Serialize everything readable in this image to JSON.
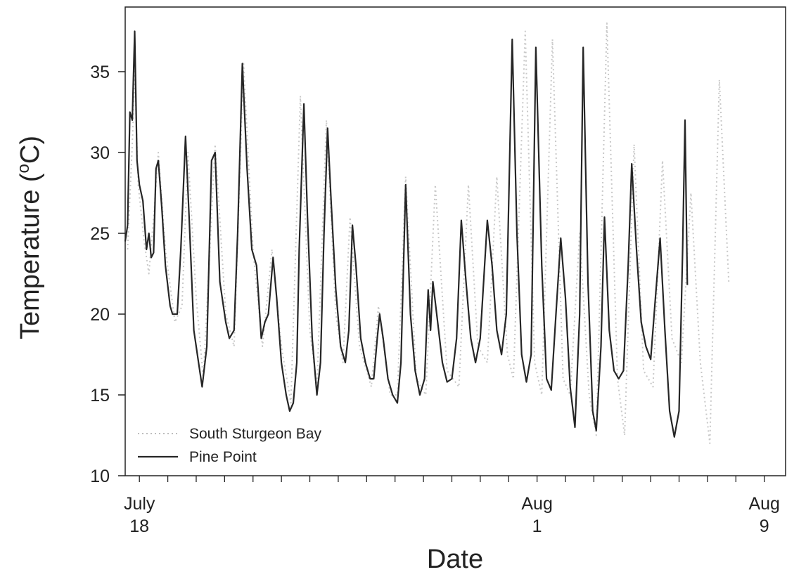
{
  "chart_data": {
    "type": "line",
    "xlabel": "Date",
    "ylabel": "Temperature (",
    "ylabel_sup": "o",
    "ylabel_end": "C)",
    "ylim": [
      10,
      39
    ],
    "y_ticks": [
      10,
      15,
      20,
      25,
      30,
      35
    ],
    "xlim": [
      "2009-07-17T12:00",
      "2009-08-09T18:00"
    ],
    "x_tick_labels": [
      {
        "date": "2009-07-18",
        "line1": "July",
        "line2": "18"
      },
      {
        "date": "2009-08-01",
        "line1": "Aug",
        "line2": "1"
      },
      {
        "date": "2009-08-09",
        "line1": "Aug",
        "line2": "9"
      }
    ],
    "minor_tick_interval_days": 1,
    "legend_position": "bottom-left",
    "series": [
      {
        "name": "South Sturgeon Bay",
        "style": "dotted",
        "color": "#c8c8c8",
        "points": [
          [
            "2009-07-17T14:00",
            24.0
          ],
          [
            "2009-07-17T18:00",
            30.5
          ],
          [
            "2009-07-17T20:00",
            35.0
          ],
          [
            "2009-07-17T23:00",
            28.0
          ],
          [
            "2009-07-18T04:00",
            24.5
          ],
          [
            "2009-07-18T08:00",
            22.5
          ],
          [
            "2009-07-18T12:00",
            26.0
          ],
          [
            "2009-07-18T16:00",
            30.0
          ],
          [
            "2009-07-18T22:00",
            24.0
          ],
          [
            "2009-07-19T06:00",
            19.5
          ],
          [
            "2009-07-19T12:00",
            20.5
          ],
          [
            "2009-07-19T17:00",
            30.0
          ],
          [
            "2009-07-20T00:00",
            21.0
          ],
          [
            "2009-07-20T06:00",
            16.0
          ],
          [
            "2009-07-20T16:00",
            30.5
          ],
          [
            "2009-07-21T01:00",
            20.0
          ],
          [
            "2009-07-21T08:00",
            18.0
          ],
          [
            "2009-07-21T16:00",
            35.5
          ],
          [
            "2009-07-22T00:00",
            24.0
          ],
          [
            "2009-07-22T08:00",
            18.0
          ],
          [
            "2009-07-22T16:00",
            24.0
          ],
          [
            "2009-07-23T00:00",
            18.0
          ],
          [
            "2009-07-23T08:00",
            14.5
          ],
          [
            "2009-07-23T16:00",
            33.5
          ],
          [
            "2009-07-24T00:00",
            19.0
          ],
          [
            "2009-07-24T06:00",
            15.5
          ],
          [
            "2009-07-24T14:00",
            32.0
          ],
          [
            "2009-07-24T22:00",
            20.0
          ],
          [
            "2009-07-25T04:00",
            17.0
          ],
          [
            "2009-07-25T10:00",
            26.0
          ],
          [
            "2009-07-25T18:00",
            18.0
          ],
          [
            "2009-07-26T04:00",
            15.5
          ],
          [
            "2009-07-26T10:00",
            20.5
          ],
          [
            "2009-07-26T20:00",
            15.0
          ],
          [
            "2009-07-27T02:00",
            15.0
          ],
          [
            "2009-07-27T09:00",
            28.5
          ],
          [
            "2009-07-27T18:00",
            16.0
          ],
          [
            "2009-07-28T02:00",
            15.0
          ],
          [
            "2009-07-28T10:00",
            28.0
          ],
          [
            "2009-07-28T20:00",
            16.5
          ],
          [
            "2009-07-29T06:00",
            15.5
          ],
          [
            "2009-07-29T14:00",
            28.0
          ],
          [
            "2009-07-29T22:00",
            18.0
          ],
          [
            "2009-07-30T06:00",
            17.0
          ],
          [
            "2009-07-30T14:00",
            28.5
          ],
          [
            "2009-07-30T23:00",
            17.5
          ],
          [
            "2009-07-31T04:00",
            16.0
          ],
          [
            "2009-07-31T14:00",
            37.5
          ],
          [
            "2009-07-31T22:00",
            17.0
          ],
          [
            "2009-08-01T04:00",
            15.0
          ],
          [
            "2009-08-01T13:00",
            37.0
          ],
          [
            "2009-08-01T22:00",
            16.0
          ],
          [
            "2009-08-02T04:00",
            15.0
          ],
          [
            "2009-08-02T12:00",
            25.0
          ],
          [
            "2009-08-02T20:00",
            15.0
          ],
          [
            "2009-08-03T02:00",
            12.5
          ],
          [
            "2009-08-03T11:00",
            38.0
          ],
          [
            "2009-08-03T20:00",
            16.0
          ],
          [
            "2009-08-04T02:00",
            12.5
          ],
          [
            "2009-08-04T10:00",
            30.5
          ],
          [
            "2009-08-04T18:00",
            16.5
          ],
          [
            "2009-08-05T02:00",
            15.5
          ],
          [
            "2009-08-05T10:00",
            29.5
          ],
          [
            "2009-08-05T18:00",
            18.5
          ],
          [
            "2009-08-06T02:00",
            17.0
          ],
          [
            "2009-08-06T10:00",
            27.5
          ],
          [
            "2009-08-06T18:00",
            17.0
          ],
          [
            "2009-08-07T02:00",
            12.0
          ],
          [
            "2009-08-07T10:00",
            34.5
          ],
          [
            "2009-08-07T18:00",
            22.0
          ]
        ]
      },
      {
        "name": "Pine Point",
        "style": "solid",
        "color": "#262626",
        "points": [
          [
            "2009-07-17T12:00",
            24.5
          ],
          [
            "2009-07-17T14:00",
            25.5
          ],
          [
            "2009-07-17T16:00",
            32.5
          ],
          [
            "2009-07-17T18:00",
            32.0
          ],
          [
            "2009-07-17T20:00",
            37.5
          ],
          [
            "2009-07-17T22:00",
            29.5
          ],
          [
            "2009-07-18T00:00",
            28.0
          ],
          [
            "2009-07-18T03:00",
            27.0
          ],
          [
            "2009-07-18T06:00",
            24.0
          ],
          [
            "2009-07-18T08:00",
            25.0
          ],
          [
            "2009-07-18T10:00",
            23.5
          ],
          [
            "2009-07-18T12:00",
            23.8
          ],
          [
            "2009-07-18T14:00",
            29.0
          ],
          [
            "2009-07-18T16:00",
            29.5
          ],
          [
            "2009-07-18T19:00",
            26.5
          ],
          [
            "2009-07-18T22:00",
            23.0
          ],
          [
            "2009-07-19T02:00",
            20.5
          ],
          [
            "2009-07-19T04:00",
            20.0
          ],
          [
            "2009-07-19T08:00",
            20.0
          ],
          [
            "2009-07-19T11:00",
            24.0
          ],
          [
            "2009-07-19T15:00",
            31.0
          ],
          [
            "2009-07-19T18:00",
            26.0
          ],
          [
            "2009-07-19T22:00",
            19.0
          ],
          [
            "2009-07-20T02:00",
            17.0
          ],
          [
            "2009-07-20T05:00",
            15.5
          ],
          [
            "2009-07-20T09:00",
            18.0
          ],
          [
            "2009-07-20T13:00",
            29.5
          ],
          [
            "2009-07-20T16:00",
            30.0
          ],
          [
            "2009-07-20T20:00",
            22.0
          ],
          [
            "2009-07-21T01:00",
            19.5
          ],
          [
            "2009-07-21T04:00",
            18.5
          ],
          [
            "2009-07-21T08:00",
            19.0
          ],
          [
            "2009-07-21T11:00",
            25.0
          ],
          [
            "2009-07-21T15:00",
            35.5
          ],
          [
            "2009-07-21T19:00",
            29.0
          ],
          [
            "2009-07-21T23:00",
            24.0
          ],
          [
            "2009-07-22T03:00",
            23.0
          ],
          [
            "2009-07-22T07:00",
            18.5
          ],
          [
            "2009-07-22T10:00",
            19.5
          ],
          [
            "2009-07-22T13:00",
            20.0
          ],
          [
            "2009-07-22T17:00",
            23.5
          ],
          [
            "2009-07-22T20:00",
            21.0
          ],
          [
            "2009-07-23T00:00",
            17.0
          ],
          [
            "2009-07-23T04:00",
            15.0
          ],
          [
            "2009-07-23T07:00",
            14.0
          ],
          [
            "2009-07-23T10:00",
            14.5
          ],
          [
            "2009-07-23T13:00",
            17.0
          ],
          [
            "2009-07-23T15:00",
            24.0
          ],
          [
            "2009-07-23T19:00",
            33.0
          ],
          [
            "2009-07-23T22:00",
            26.0
          ],
          [
            "2009-07-24T02:00",
            18.5
          ],
          [
            "2009-07-24T06:00",
            15.0
          ],
          [
            "2009-07-24T09:00",
            17.0
          ],
          [
            "2009-07-24T12:00",
            25.0
          ],
          [
            "2009-07-24T15:00",
            31.5
          ],
          [
            "2009-07-24T18:00",
            27.0
          ],
          [
            "2009-07-24T22:00",
            21.5
          ],
          [
            "2009-07-25T02:00",
            18.0
          ],
          [
            "2009-07-25T06:00",
            17.0
          ],
          [
            "2009-07-25T09:00",
            19.0
          ],
          [
            "2009-07-25T12:00",
            25.5
          ],
          [
            "2009-07-25T15:00",
            23.0
          ],
          [
            "2009-07-25T19:00",
            18.5
          ],
          [
            "2009-07-25T23:00",
            17.0
          ],
          [
            "2009-07-26T03:00",
            16.0
          ],
          [
            "2009-07-26T06:00",
            16.0
          ],
          [
            "2009-07-26T09:00",
            18.5
          ],
          [
            "2009-07-26T11:00",
            20.0
          ],
          [
            "2009-07-26T14:00",
            18.5
          ],
          [
            "2009-07-26T18:00",
            16.0
          ],
          [
            "2009-07-26T22:00",
            15.0
          ],
          [
            "2009-07-27T02:00",
            14.5
          ],
          [
            "2009-07-27T05:00",
            17.0
          ],
          [
            "2009-07-27T09:00",
            28.0
          ],
          [
            "2009-07-27T13:00",
            20.0
          ],
          [
            "2009-07-27T17:00",
            16.5
          ],
          [
            "2009-07-27T21:00",
            15.0
          ],
          [
            "2009-07-28T01:00",
            16.0
          ],
          [
            "2009-07-28T04:00",
            21.5
          ],
          [
            "2009-07-28T06:00",
            19.0
          ],
          [
            "2009-07-28T08:00",
            22.0
          ],
          [
            "2009-07-28T12:00",
            19.5
          ],
          [
            "2009-07-28T16:00",
            17.0
          ],
          [
            "2009-07-28T20:00",
            15.8
          ],
          [
            "2009-07-29T00:00",
            16.0
          ],
          [
            "2009-07-29T04:00",
            18.5
          ],
          [
            "2009-07-29T08:00",
            25.8
          ],
          [
            "2009-07-29T12:00",
            22.0
          ],
          [
            "2009-07-29T16:00",
            18.5
          ],
          [
            "2009-07-29T20:00",
            17.0
          ],
          [
            "2009-07-30T00:00",
            18.5
          ],
          [
            "2009-07-30T06:00",
            25.8
          ],
          [
            "2009-07-30T10:00",
            23.0
          ],
          [
            "2009-07-30T14:00",
            19.0
          ],
          [
            "2009-07-30T18:00",
            17.5
          ],
          [
            "2009-07-30T22:00",
            20.0
          ],
          [
            "2009-07-31T03:00",
            37.0
          ],
          [
            "2009-07-31T07:00",
            25.0
          ],
          [
            "2009-07-31T11:00",
            17.5
          ],
          [
            "2009-07-31T15:00",
            15.8
          ],
          [
            "2009-07-31T19:00",
            17.5
          ],
          [
            "2009-07-31T23:00",
            36.5
          ],
          [
            "2009-08-01T04:00",
            23.0
          ],
          [
            "2009-08-01T08:00",
            16.0
          ],
          [
            "2009-08-01T12:00",
            15.3
          ],
          [
            "2009-08-01T16:00",
            20.0
          ],
          [
            "2009-08-01T20:00",
            24.7
          ],
          [
            "2009-08-02T00:00",
            21.0
          ],
          [
            "2009-08-02T04:00",
            15.5
          ],
          [
            "2009-08-02T08:00",
            13.0
          ],
          [
            "2009-08-02T12:00",
            20.0
          ],
          [
            "2009-08-02T15:00",
            36.5
          ],
          [
            "2009-08-02T19:00",
            22.0
          ],
          [
            "2009-08-02T23:00",
            14.0
          ],
          [
            "2009-08-03T02:00",
            12.8
          ],
          [
            "2009-08-03T06:00",
            18.0
          ],
          [
            "2009-08-03T09:00",
            26.0
          ],
          [
            "2009-08-03T13:00",
            19.0
          ],
          [
            "2009-08-03T17:00",
            16.5
          ],
          [
            "2009-08-03T21:00",
            16.0
          ],
          [
            "2009-08-04T01:00",
            16.5
          ],
          [
            "2009-08-04T05:00",
            23.0
          ],
          [
            "2009-08-04T08:00",
            29.3
          ],
          [
            "2009-08-04T12:00",
            24.0
          ],
          [
            "2009-08-04T16:00",
            19.5
          ],
          [
            "2009-08-04T20:00",
            18.0
          ],
          [
            "2009-08-05T00:00",
            17.2
          ],
          [
            "2009-08-05T04:00",
            21.0
          ],
          [
            "2009-08-05T08:00",
            24.7
          ],
          [
            "2009-08-05T12:00",
            19.0
          ],
          [
            "2009-08-05T16:00",
            14.0
          ],
          [
            "2009-08-05T20:00",
            12.4
          ],
          [
            "2009-08-06T00:00",
            14.0
          ],
          [
            "2009-08-06T03:00",
            24.0
          ],
          [
            "2009-08-06T05:00",
            32.0
          ],
          [
            "2009-08-06T07:00",
            21.8
          ]
        ]
      }
    ]
  }
}
